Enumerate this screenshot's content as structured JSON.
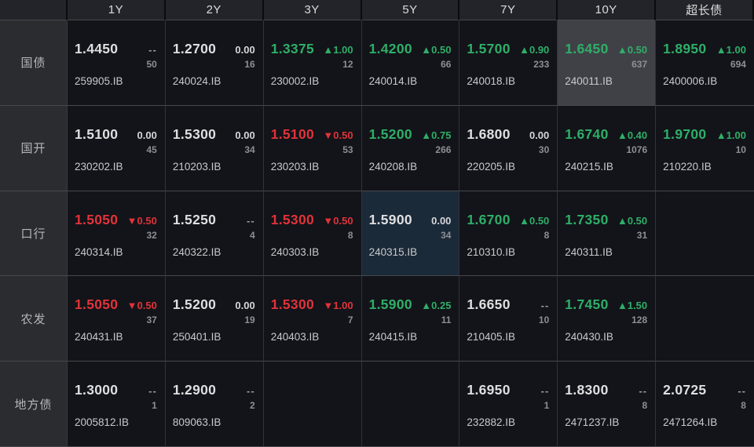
{
  "header": {
    "columns": [
      "1Y",
      "2Y",
      "3Y",
      "5Y",
      "7Y",
      "10Y",
      "超长债"
    ]
  },
  "colors": {
    "up": "#2fae68",
    "down": "#e1333a",
    "flat": "#dfdfe2",
    "highlight_gray": "#404147",
    "highlight_blue": "#1b2a38",
    "background": "#121419"
  },
  "rows": [
    {
      "label": "国债",
      "cells": [
        {
          "value": "1.4450",
          "value_color": "flat",
          "change": "--",
          "change_color": "none",
          "count": "50",
          "code": "259905.IB",
          "highlight": null
        },
        {
          "value": "1.2700",
          "value_color": "flat",
          "change": "0.00",
          "change_color": "zero",
          "count": "16",
          "code": "240024.IB",
          "highlight": null
        },
        {
          "value": "1.3375",
          "value_color": "up",
          "change": "▲1.00",
          "change_color": "up",
          "count": "12",
          "code": "230002.IB",
          "highlight": null
        },
        {
          "value": "1.4200",
          "value_color": "up",
          "change": "▲0.50",
          "change_color": "up",
          "count": "66",
          "code": "240014.IB",
          "highlight": null
        },
        {
          "value": "1.5700",
          "value_color": "up",
          "change": "▲0.90",
          "change_color": "up",
          "count": "233",
          "code": "240018.IB",
          "highlight": null
        },
        {
          "value": "1.6450",
          "value_color": "up",
          "change": "▲0.50",
          "change_color": "up",
          "count": "637",
          "code": "240011.IB",
          "highlight": "gray"
        },
        {
          "value": "1.8950",
          "value_color": "up",
          "change": "▲1.00",
          "change_color": "up",
          "count": "694",
          "code": "2400006.IB",
          "highlight": null
        }
      ]
    },
    {
      "label": "国开",
      "cells": [
        {
          "value": "1.5100",
          "value_color": "flat",
          "change": "0.00",
          "change_color": "zero",
          "count": "45",
          "code": "230202.IB",
          "highlight": null
        },
        {
          "value": "1.5300",
          "value_color": "flat",
          "change": "0.00",
          "change_color": "zero",
          "count": "34",
          "code": "210203.IB",
          "highlight": null
        },
        {
          "value": "1.5100",
          "value_color": "down",
          "change": "▼0.50",
          "change_color": "down",
          "count": "53",
          "code": "230203.IB",
          "highlight": null
        },
        {
          "value": "1.5200",
          "value_color": "up",
          "change": "▲0.75",
          "change_color": "up",
          "count": "266",
          "code": "240208.IB",
          "highlight": null
        },
        {
          "value": "1.6800",
          "value_color": "flat",
          "change": "0.00",
          "change_color": "zero",
          "count": "30",
          "code": "220205.IB",
          "highlight": null
        },
        {
          "value": "1.6740",
          "value_color": "up",
          "change": "▲0.40",
          "change_color": "up",
          "count": "1076",
          "code": "240215.IB",
          "highlight": null
        },
        {
          "value": "1.9700",
          "value_color": "up",
          "change": "▲1.00",
          "change_color": "up",
          "count": "10",
          "code": "210220.IB",
          "highlight": null
        }
      ]
    },
    {
      "label": "口行",
      "cells": [
        {
          "value": "1.5050",
          "value_color": "down",
          "change": "▼0.50",
          "change_color": "down",
          "count": "32",
          "code": "240314.IB",
          "highlight": null
        },
        {
          "value": "1.5250",
          "value_color": "flat",
          "change": "--",
          "change_color": "none",
          "count": "4",
          "code": "240322.IB",
          "highlight": null
        },
        {
          "value": "1.5300",
          "value_color": "down",
          "change": "▼0.50",
          "change_color": "down",
          "count": "8",
          "code": "240303.IB",
          "highlight": null
        },
        {
          "value": "1.5900",
          "value_color": "flat",
          "change": "0.00",
          "change_color": "zero",
          "count": "34",
          "code": "240315.IB",
          "highlight": "blue"
        },
        {
          "value": "1.6700",
          "value_color": "up",
          "change": "▲0.50",
          "change_color": "up",
          "count": "8",
          "code": "210310.IB",
          "highlight": null
        },
        {
          "value": "1.7350",
          "value_color": "up",
          "change": "▲0.50",
          "change_color": "up",
          "count": "31",
          "code": "240311.IB",
          "highlight": null
        },
        null
      ]
    },
    {
      "label": "农发",
      "cells": [
        {
          "value": "1.5050",
          "value_color": "down",
          "change": "▼0.50",
          "change_color": "down",
          "count": "37",
          "code": "240431.IB",
          "highlight": null
        },
        {
          "value": "1.5200",
          "value_color": "flat",
          "change": "0.00",
          "change_color": "zero",
          "count": "19",
          "code": "250401.IB",
          "highlight": null
        },
        {
          "value": "1.5300",
          "value_color": "down",
          "change": "▼1.00",
          "change_color": "down",
          "count": "7",
          "code": "240403.IB",
          "highlight": null
        },
        {
          "value": "1.5900",
          "value_color": "up",
          "change": "▲0.25",
          "change_color": "up",
          "count": "11",
          "code": "240415.IB",
          "highlight": null
        },
        {
          "value": "1.6650",
          "value_color": "flat",
          "change": "--",
          "change_color": "none",
          "count": "10",
          "code": "210405.IB",
          "highlight": null
        },
        {
          "value": "1.7450",
          "value_color": "up",
          "change": "▲1.50",
          "change_color": "up",
          "count": "128",
          "code": "240430.IB",
          "highlight": null
        },
        null
      ]
    },
    {
      "label": "地方债",
      "cells": [
        {
          "value": "1.3000",
          "value_color": "flat",
          "change": "--",
          "change_color": "none",
          "count": "1",
          "code": "2005812.IB",
          "highlight": null
        },
        {
          "value": "1.2900",
          "value_color": "flat",
          "change": "--",
          "change_color": "none",
          "count": "2",
          "code": "809063.IB",
          "highlight": null
        },
        null,
        null,
        {
          "value": "1.6950",
          "value_color": "flat",
          "change": "--",
          "change_color": "none",
          "count": "1",
          "code": "232882.IB",
          "highlight": null
        },
        {
          "value": "1.8300",
          "value_color": "flat",
          "change": "--",
          "change_color": "none",
          "count": "8",
          "code": "2471237.IB",
          "highlight": null
        },
        {
          "value": "2.0725",
          "value_color": "flat",
          "change": "--",
          "change_color": "none",
          "count": "8",
          "code": "2471264.IB",
          "highlight": null
        }
      ]
    }
  ]
}
